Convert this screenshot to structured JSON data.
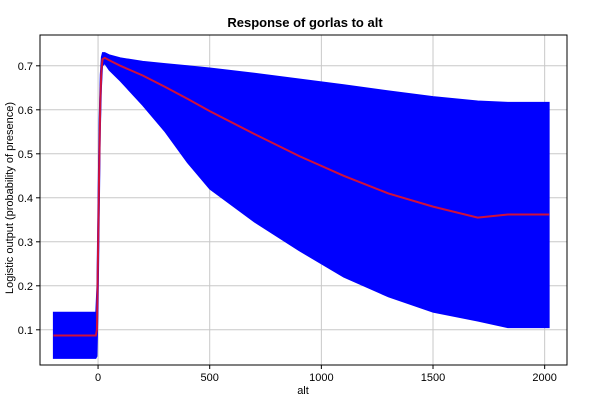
{
  "chart_data": {
    "type": "area",
    "title": "Response of gorlas to alt",
    "xlabel": "alt",
    "ylabel": "Logistic output (probability of presence)",
    "xlim": [
      -260,
      2100
    ],
    "ylim": [
      0.02,
      0.77
    ],
    "grid": true,
    "x_ticks": [
      0,
      500,
      1000,
      1500,
      2000
    ],
    "y_ticks": [
      0.1,
      0.2,
      0.3,
      0.4,
      0.5,
      0.6,
      0.7
    ],
    "x_tick_labels": [
      "0",
      "500",
      "1000",
      "1500",
      "2000"
    ],
    "y_tick_labels": [
      "0.1",
      "0.2",
      "0.3",
      "0.4",
      "0.5",
      "0.6",
      "0.7"
    ],
    "series": [
      {
        "kind": "band",
        "color": "#0000ff",
        "x": [
          -200,
          -10,
          -5,
          0,
          5,
          10,
          15,
          20,
          30,
          50,
          100,
          200,
          300,
          400,
          500,
          700,
          900,
          1100,
          1300,
          1500,
          1700,
          1835,
          2020
        ],
        "lower": [
          0.035,
          0.035,
          0.04,
          0.15,
          0.35,
          0.55,
          0.65,
          0.7,
          0.705,
          0.69,
          0.665,
          0.61,
          0.55,
          0.48,
          0.42,
          0.345,
          0.28,
          0.22,
          0.175,
          0.14,
          0.12,
          0.105,
          0.105
        ],
        "upper": [
          0.14,
          0.14,
          0.2,
          0.4,
          0.58,
          0.68,
          0.72,
          0.73,
          0.73,
          0.725,
          0.718,
          0.71,
          0.705,
          0.7,
          0.695,
          0.683,
          0.67,
          0.657,
          0.643,
          0.63,
          0.62,
          0.617,
          0.617
        ]
      },
      {
        "kind": "line",
        "color": "#d0103a",
        "x": [
          -200,
          -10,
          -5,
          0,
          5,
          10,
          15,
          20,
          30,
          60,
          100,
          200,
          300,
          400,
          500,
          700,
          900,
          1100,
          1300,
          1500,
          1700,
          1835,
          2020
        ],
        "values": [
          0.087,
          0.087,
          0.1,
          0.28,
          0.47,
          0.62,
          0.69,
          0.715,
          0.718,
          0.71,
          0.7,
          0.678,
          0.652,
          0.625,
          0.597,
          0.545,
          0.495,
          0.45,
          0.41,
          0.38,
          0.355,
          0.362,
          0.362
        ]
      }
    ]
  }
}
